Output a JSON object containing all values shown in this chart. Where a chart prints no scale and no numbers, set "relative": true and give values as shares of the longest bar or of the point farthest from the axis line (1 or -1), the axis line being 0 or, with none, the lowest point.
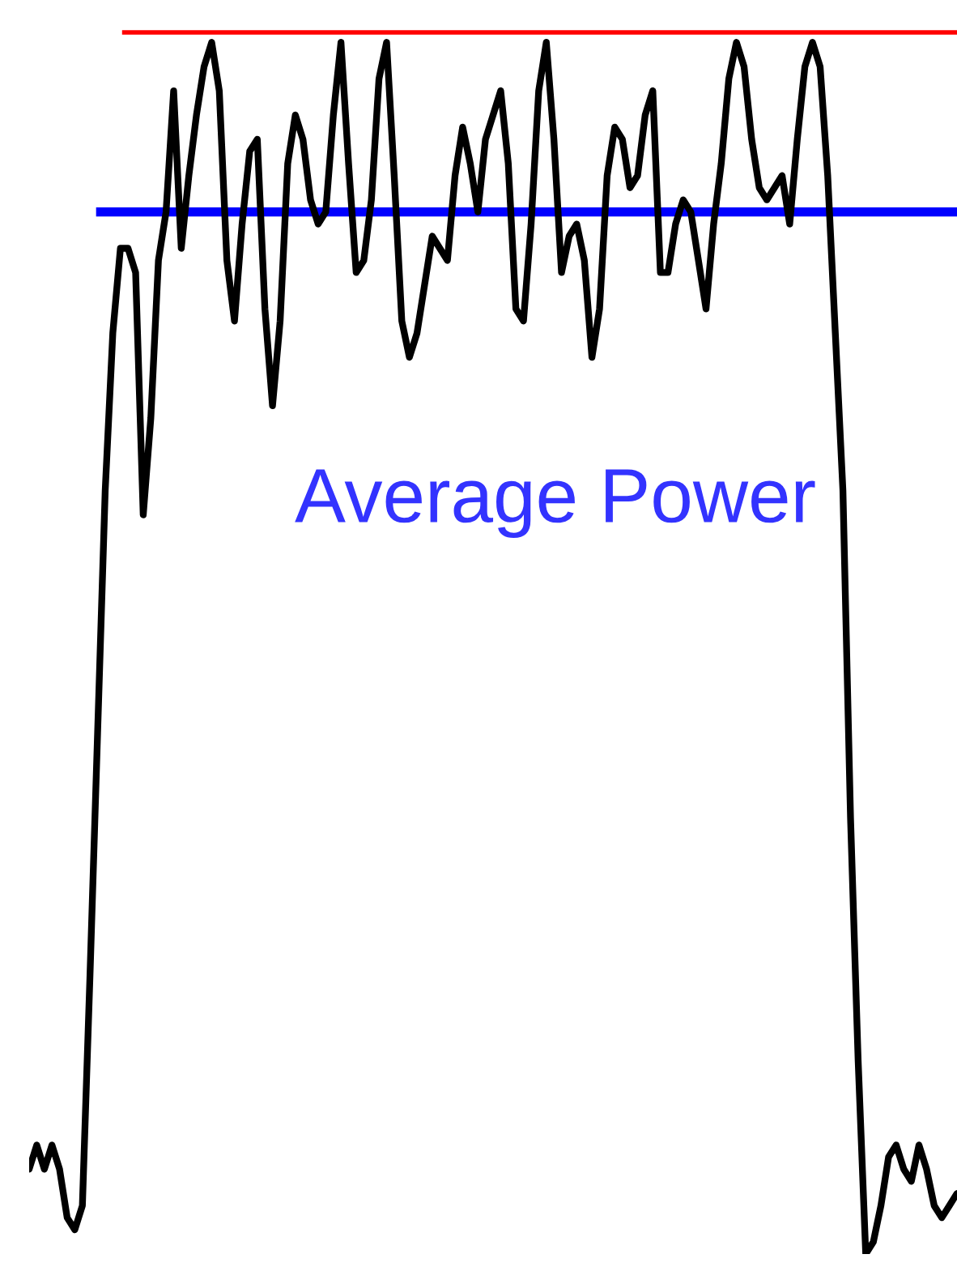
{
  "chart_data": {
    "type": "line",
    "relative": true,
    "annotations": [
      "Average Power"
    ],
    "categories": [
      null,
      null,
      null,
      null,
      null,
      null,
      null,
      null,
      null,
      null,
      null,
      null,
      null,
      null,
      null,
      null,
      null,
      null,
      null,
      null,
      null,
      null,
      null,
      null,
      null,
      null,
      null,
      null,
      null,
      null,
      null,
      null,
      null,
      null,
      null,
      null,
      null,
      null,
      null,
      null,
      null,
      null,
      null,
      null,
      null,
      null,
      null,
      null,
      null,
      null,
      null,
      null,
      null,
      null,
      null,
      null,
      null,
      null,
      null,
      null,
      null,
      null,
      null,
      null,
      null,
      null,
      null,
      null,
      null,
      null,
      null,
      null,
      null,
      null,
      null,
      null,
      null,
      null,
      null,
      null,
      null,
      null,
      null,
      null,
      null,
      null,
      null,
      null,
      null,
      null,
      null,
      null,
      null,
      null,
      null,
      null,
      null,
      null,
      null,
      null,
      null,
      null,
      null,
      null,
      null,
      null,
      null,
      null,
      null,
      null,
      null,
      null,
      null,
      null,
      null,
      null,
      null,
      null,
      null,
      null,
      null,
      null,
      null
    ],
    "series": [
      {
        "color": "#000000",
        "values": [
          0.07,
          0.09,
          0.07,
          0.09,
          0.07,
          0.03,
          0.02,
          0.04,
          0.23,
          0.43,
          0.63,
          0.76,
          0.83,
          0.83,
          0.81,
          0.61,
          0.69,
          0.82,
          0.86,
          0.96,
          0.83,
          0.89,
          0.94,
          0.98,
          1.0,
          0.96,
          0.82,
          0.77,
          0.85,
          0.91,
          0.92,
          0.78,
          0.7,
          0.77,
          0.9,
          0.94,
          0.92,
          0.87,
          0.85,
          0.86,
          0.94,
          1.0,
          0.9,
          0.81,
          0.82,
          0.87,
          0.97,
          1.0,
          0.89,
          0.77,
          0.74,
          0.76,
          0.8,
          0.84,
          0.83,
          0.82,
          0.89,
          0.93,
          0.9,
          0.86,
          0.92,
          0.94,
          0.96,
          0.9,
          0.78,
          0.77,
          0.85,
          0.96,
          1.0,
          0.92,
          0.81,
          0.84,
          0.85,
          0.82,
          0.74,
          0.78,
          0.89,
          0.93,
          0.92,
          0.88,
          0.89,
          0.94,
          0.96,
          0.81,
          0.81,
          0.85,
          0.87,
          0.86,
          0.82,
          0.78,
          0.85,
          0.9,
          0.97,
          1.0,
          0.98,
          0.92,
          0.88,
          0.87,
          0.88,
          0.89,
          0.85,
          0.92,
          0.98,
          1.0,
          0.98,
          0.89,
          0.76,
          0.63,
          0.36,
          0.16,
          0.0,
          0.01,
          0.04,
          0.08,
          0.09,
          0.07,
          0.06,
          0.09,
          0.07,
          0.04,
          0.03,
          0.04,
          0.05
        ]
      }
    ],
    "ref_lines": [
      {
        "axis": "y",
        "value": 1.01,
        "color": "#ff0000"
      },
      {
        "axis": "y",
        "value": 0.86,
        "color": "#0000ff"
      }
    ]
  }
}
